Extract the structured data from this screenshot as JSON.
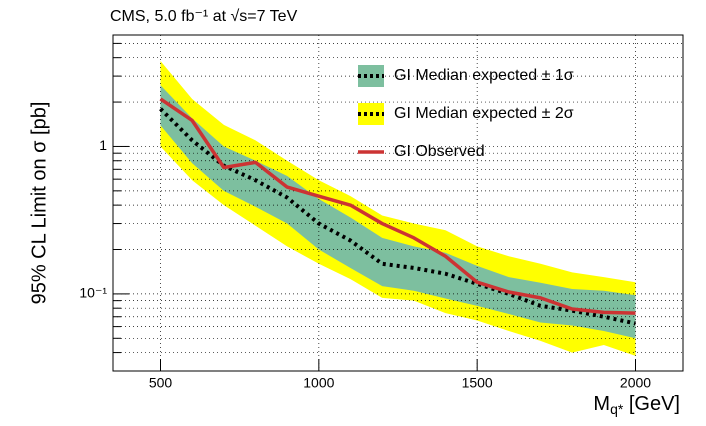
{
  "chart_data": {
    "type": "limit",
    "title": "CMS, 5.0 fb⁻¹ at √s=7 TeV",
    "xlabel_parts": [
      "M",
      "q*",
      " [GeV]"
    ],
    "ylabel": "95% CL Limit on σ [pb]",
    "x": [
      500,
      600,
      700,
      800,
      900,
      1000,
      1100,
      1200,
      1300,
      1400,
      1500,
      1600,
      1700,
      1800,
      1900,
      2000
    ],
    "series": [
      {
        "name": "GI Median expected ± 1σ",
        "color": "#7dbf9f",
        "line_color": "#000000",
        "values": [
          1.8,
          1.1,
          0.74,
          0.59,
          0.45,
          0.3,
          0.23,
          0.16,
          0.15,
          0.137,
          0.117,
          0.1,
          0.083,
          0.077,
          0.07,
          0.063
        ],
        "lower": [
          1.39,
          0.77,
          0.5,
          0.39,
          0.3,
          0.2,
          0.15,
          0.113,
          0.105,
          0.093,
          0.083,
          0.073,
          0.064,
          0.061,
          0.056,
          0.05
        ],
        "upper": [
          2.6,
          1.55,
          1.0,
          0.8,
          0.63,
          0.44,
          0.33,
          0.24,
          0.21,
          0.19,
          0.155,
          0.13,
          0.119,
          0.108,
          0.105,
          0.098
        ]
      },
      {
        "name": "GI Median expected ± 2σ",
        "color": "#ffff00",
        "lower": [
          1.0,
          0.59,
          0.4,
          0.29,
          0.21,
          0.16,
          0.126,
          0.094,
          0.09,
          0.074,
          0.066,
          0.056,
          0.048,
          0.04,
          0.045,
          0.038
        ],
        "upper": [
          3.8,
          2.1,
          1.4,
          1.1,
          0.8,
          0.59,
          0.46,
          0.34,
          0.3,
          0.27,
          0.21,
          0.18,
          0.16,
          0.14,
          0.13,
          0.12
        ]
      },
      {
        "name": "GI Observed",
        "color": "#cc3333",
        "values": [
          2.1,
          1.5,
          0.72,
          0.78,
          0.53,
          0.46,
          0.4,
          0.3,
          0.24,
          0.18,
          0.12,
          0.103,
          0.094,
          0.079,
          0.075,
          0.074
        ]
      }
    ],
    "xlim": [
      350,
      2150
    ],
    "xticks": [
      500,
      1000,
      1500,
      2000
    ],
    "ylim": [
      0.03,
      5.7
    ],
    "yticks": [
      1,
      {
        "value": 0.1,
        "label": "10⁻¹"
      }
    ],
    "yminorticks": [
      0.04,
      0.05,
      0.06,
      0.07,
      0.08,
      0.09,
      0.2,
      0.3,
      0.4,
      0.5,
      0.6,
      0.7,
      0.8,
      0.9,
      2,
      3,
      4,
      5
    ],
    "log_y": true,
    "grid": true,
    "legend": "upper right"
  }
}
